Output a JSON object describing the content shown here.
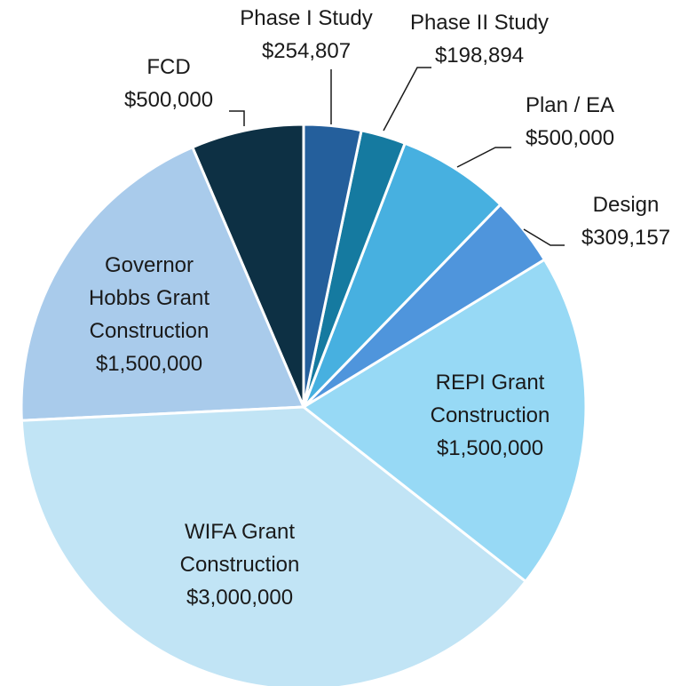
{
  "chart_data": {
    "type": "pie",
    "categories": [
      "Phase I Study",
      "Phase II Study",
      "Plan / EA",
      "Design",
      "REPI Grant Construction",
      "WIFA Grant Construction",
      "Governor Hobbs Grant Construction",
      "FCD"
    ],
    "values": [
      254807,
      198894,
      500000,
      309157,
      1500000,
      3000000,
      1500000,
      500000
    ],
    "value_labels": [
      "$254,807",
      "$198,894",
      "$500,000",
      "$309,157",
      "$1,500,000",
      "$3,000,000",
      "$1,500,000",
      "$500,000"
    ],
    "colors": [
      "#245f9c",
      "#157aa0",
      "#47b0e0",
      "#4f95dc",
      "#97d9f5",
      "#c1e4f5",
      "#a9cbeb",
      "#0d3044"
    ]
  }
}
